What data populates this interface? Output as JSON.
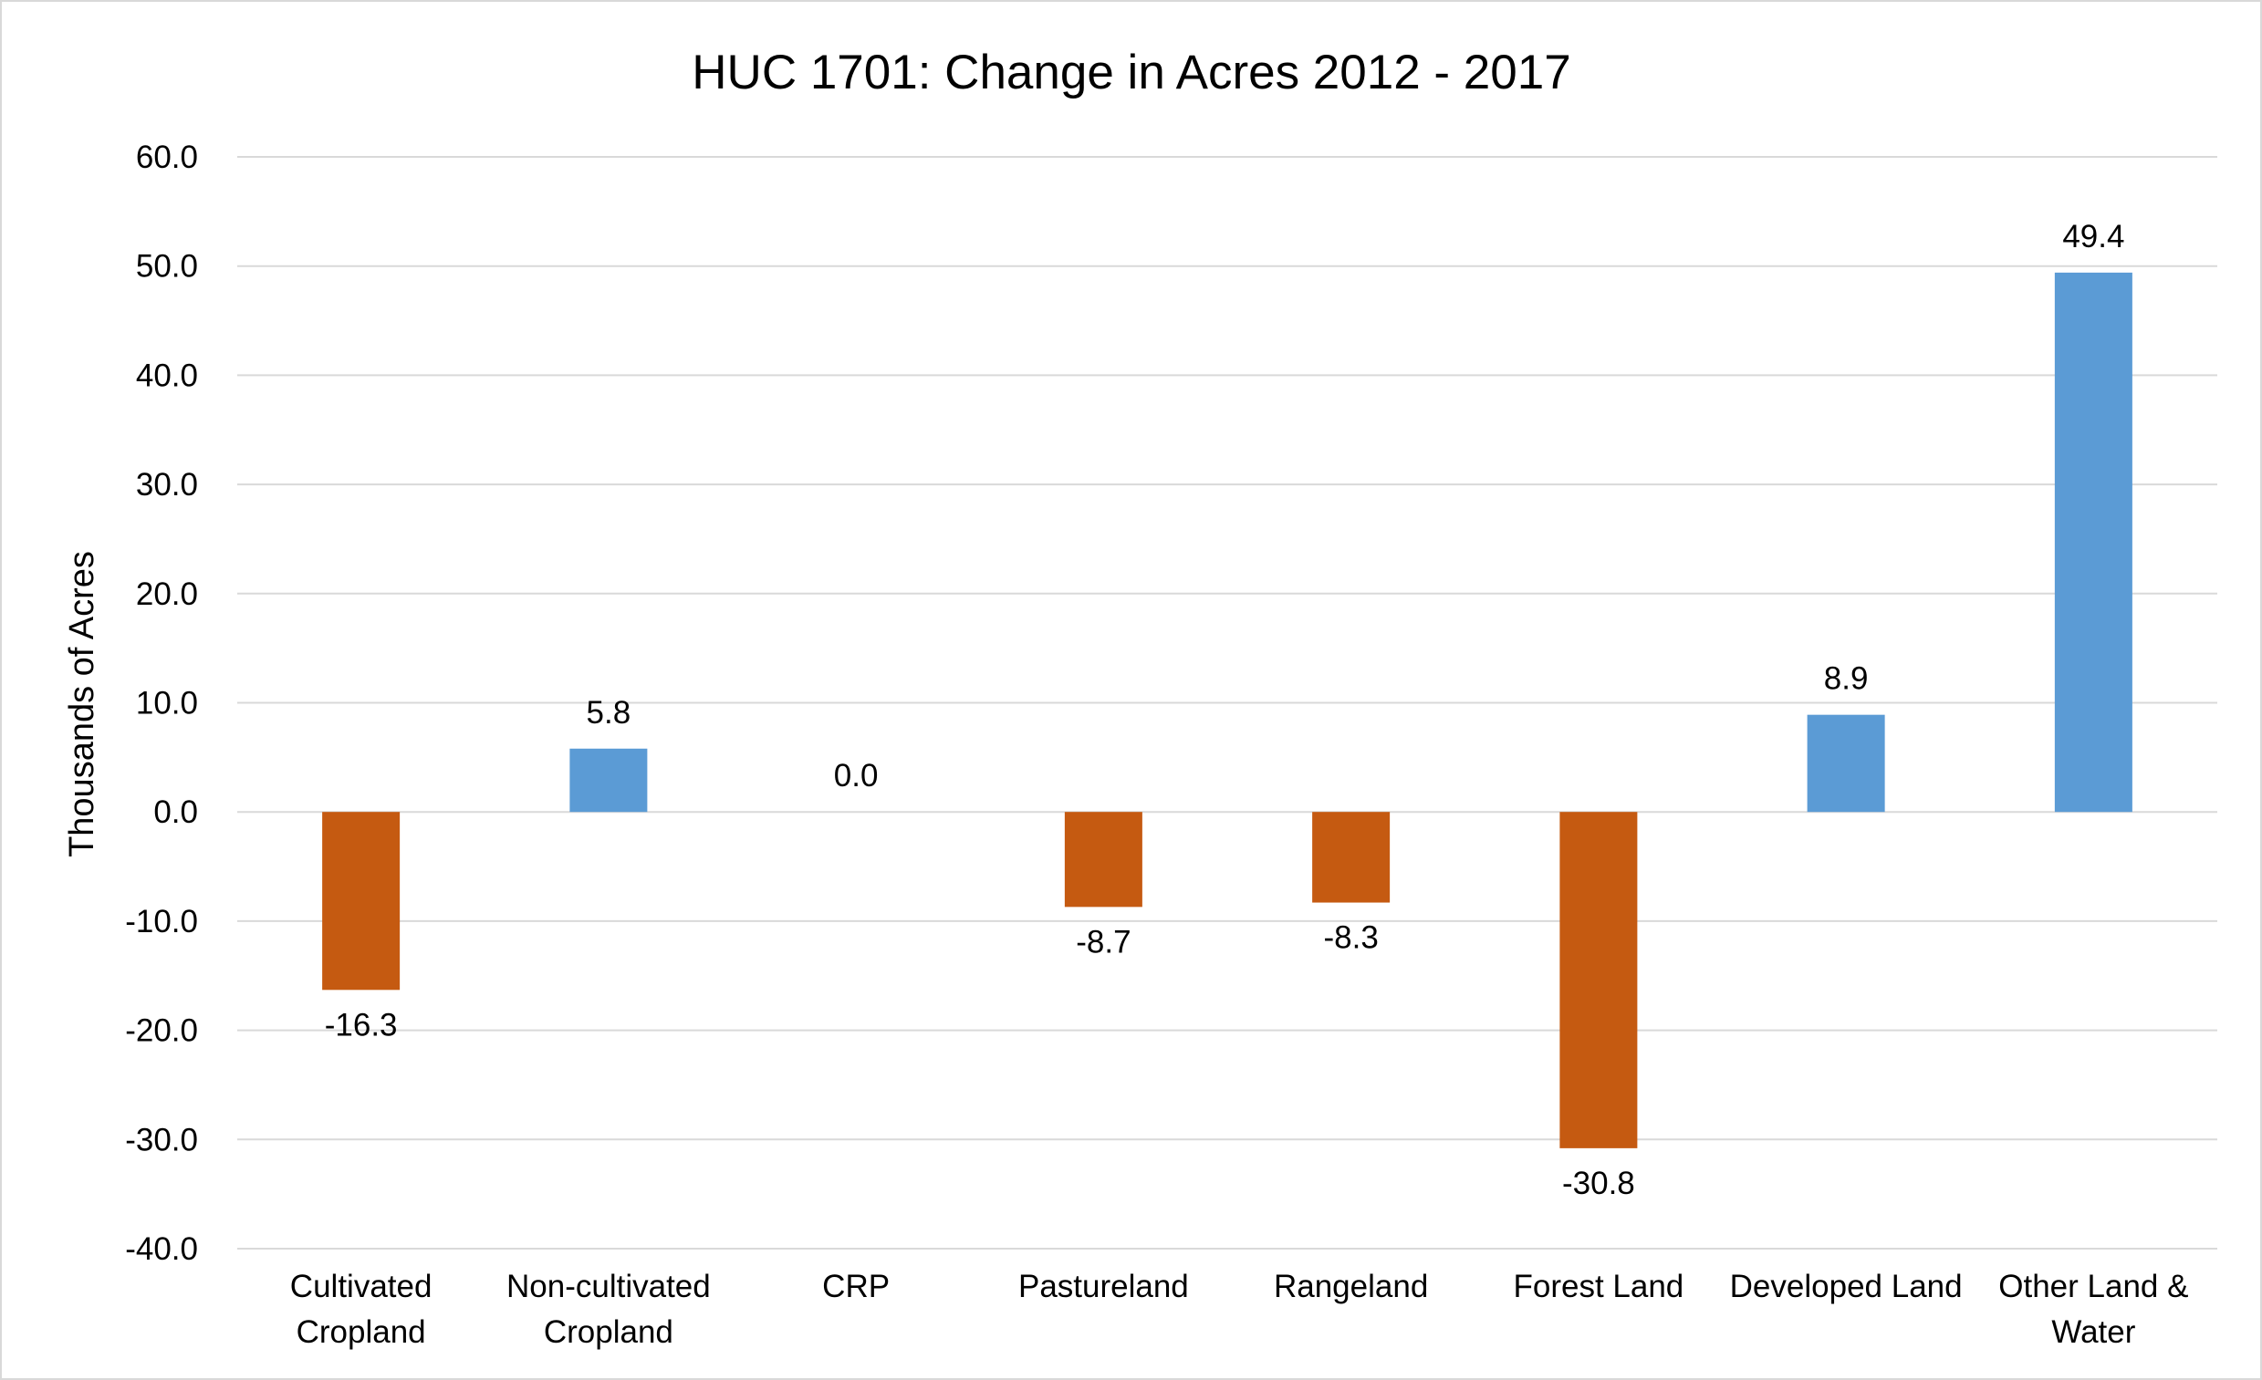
{
  "chart_data": {
    "type": "bar",
    "title": "HUC 1701: Change in Acres 2012 - 2017",
    "xlabel": "",
    "ylabel": "Thousands of Acres",
    "ylim": [
      -40,
      60
    ],
    "ytick_step": 10,
    "ytick_labels": [
      "-40.0",
      "-30.0",
      "-20.0",
      "-10.0",
      "0.0",
      "10.0",
      "20.0",
      "30.0",
      "40.0",
      "50.0",
      "60.0"
    ],
    "grid": true,
    "legend": "none",
    "categories": [
      [
        "Cultivated",
        "Cropland"
      ],
      [
        "Non-cultivated",
        "Cropland"
      ],
      [
        "CRP"
      ],
      [
        "Pastureland"
      ],
      [
        "Rangeland"
      ],
      [
        "Forest Land"
      ],
      [
        "Developed Land"
      ],
      [
        "Other Land &",
        "Water"
      ]
    ],
    "values": [
      -16.3,
      5.8,
      0.0,
      -8.7,
      -8.3,
      -30.8,
      8.9,
      49.4
    ],
    "data_labels": [
      "-16.3",
      "5.8",
      "0.0",
      "-8.7",
      "-8.3",
      "-30.8",
      "8.9",
      "49.4"
    ],
    "colors": {
      "positive": "#5b9bd5",
      "negative": "#c55a11"
    }
  }
}
